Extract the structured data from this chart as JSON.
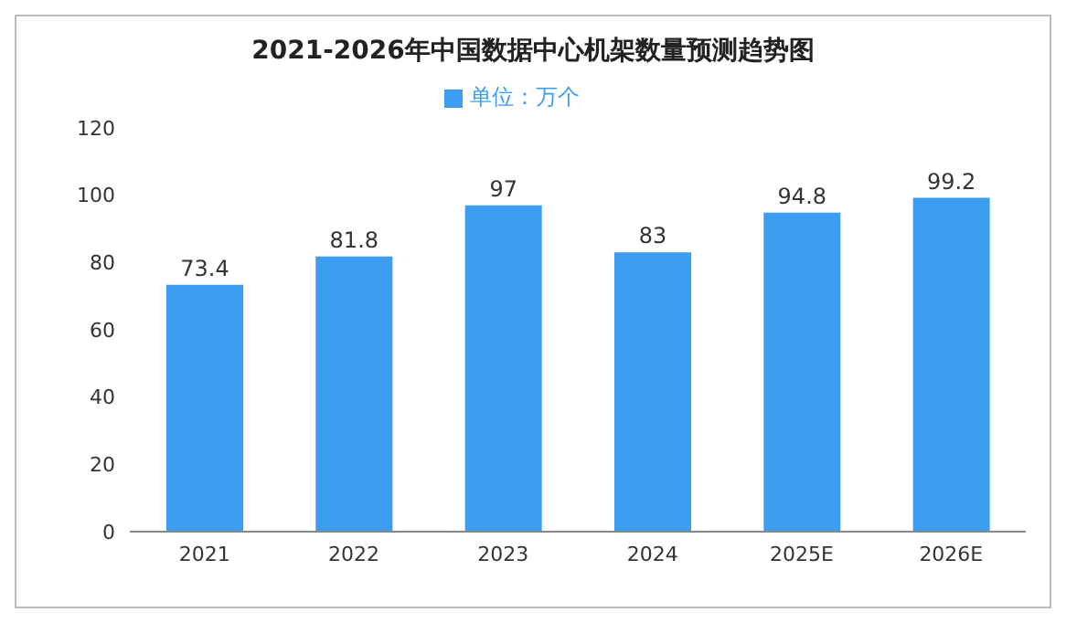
{
  "chart_data": {
    "type": "bar",
    "title": "2021-2026年中国数据中心机架数量预测趋势图",
    "categories": [
      "2021",
      "2022",
      "2023",
      "2024",
      "2025E",
      "2026E"
    ],
    "series": [
      {
        "name": "单位：万个",
        "color": "#3d9df0",
        "values": [
          73.4,
          81.8,
          97,
          83,
          94.8,
          99.2
        ]
      }
    ],
    "ylim": [
      0,
      120
    ],
    "yticks": [
      0,
      20,
      40,
      60,
      80,
      100,
      120
    ],
    "grid": false,
    "legend": "top",
    "data_labels": true
  }
}
